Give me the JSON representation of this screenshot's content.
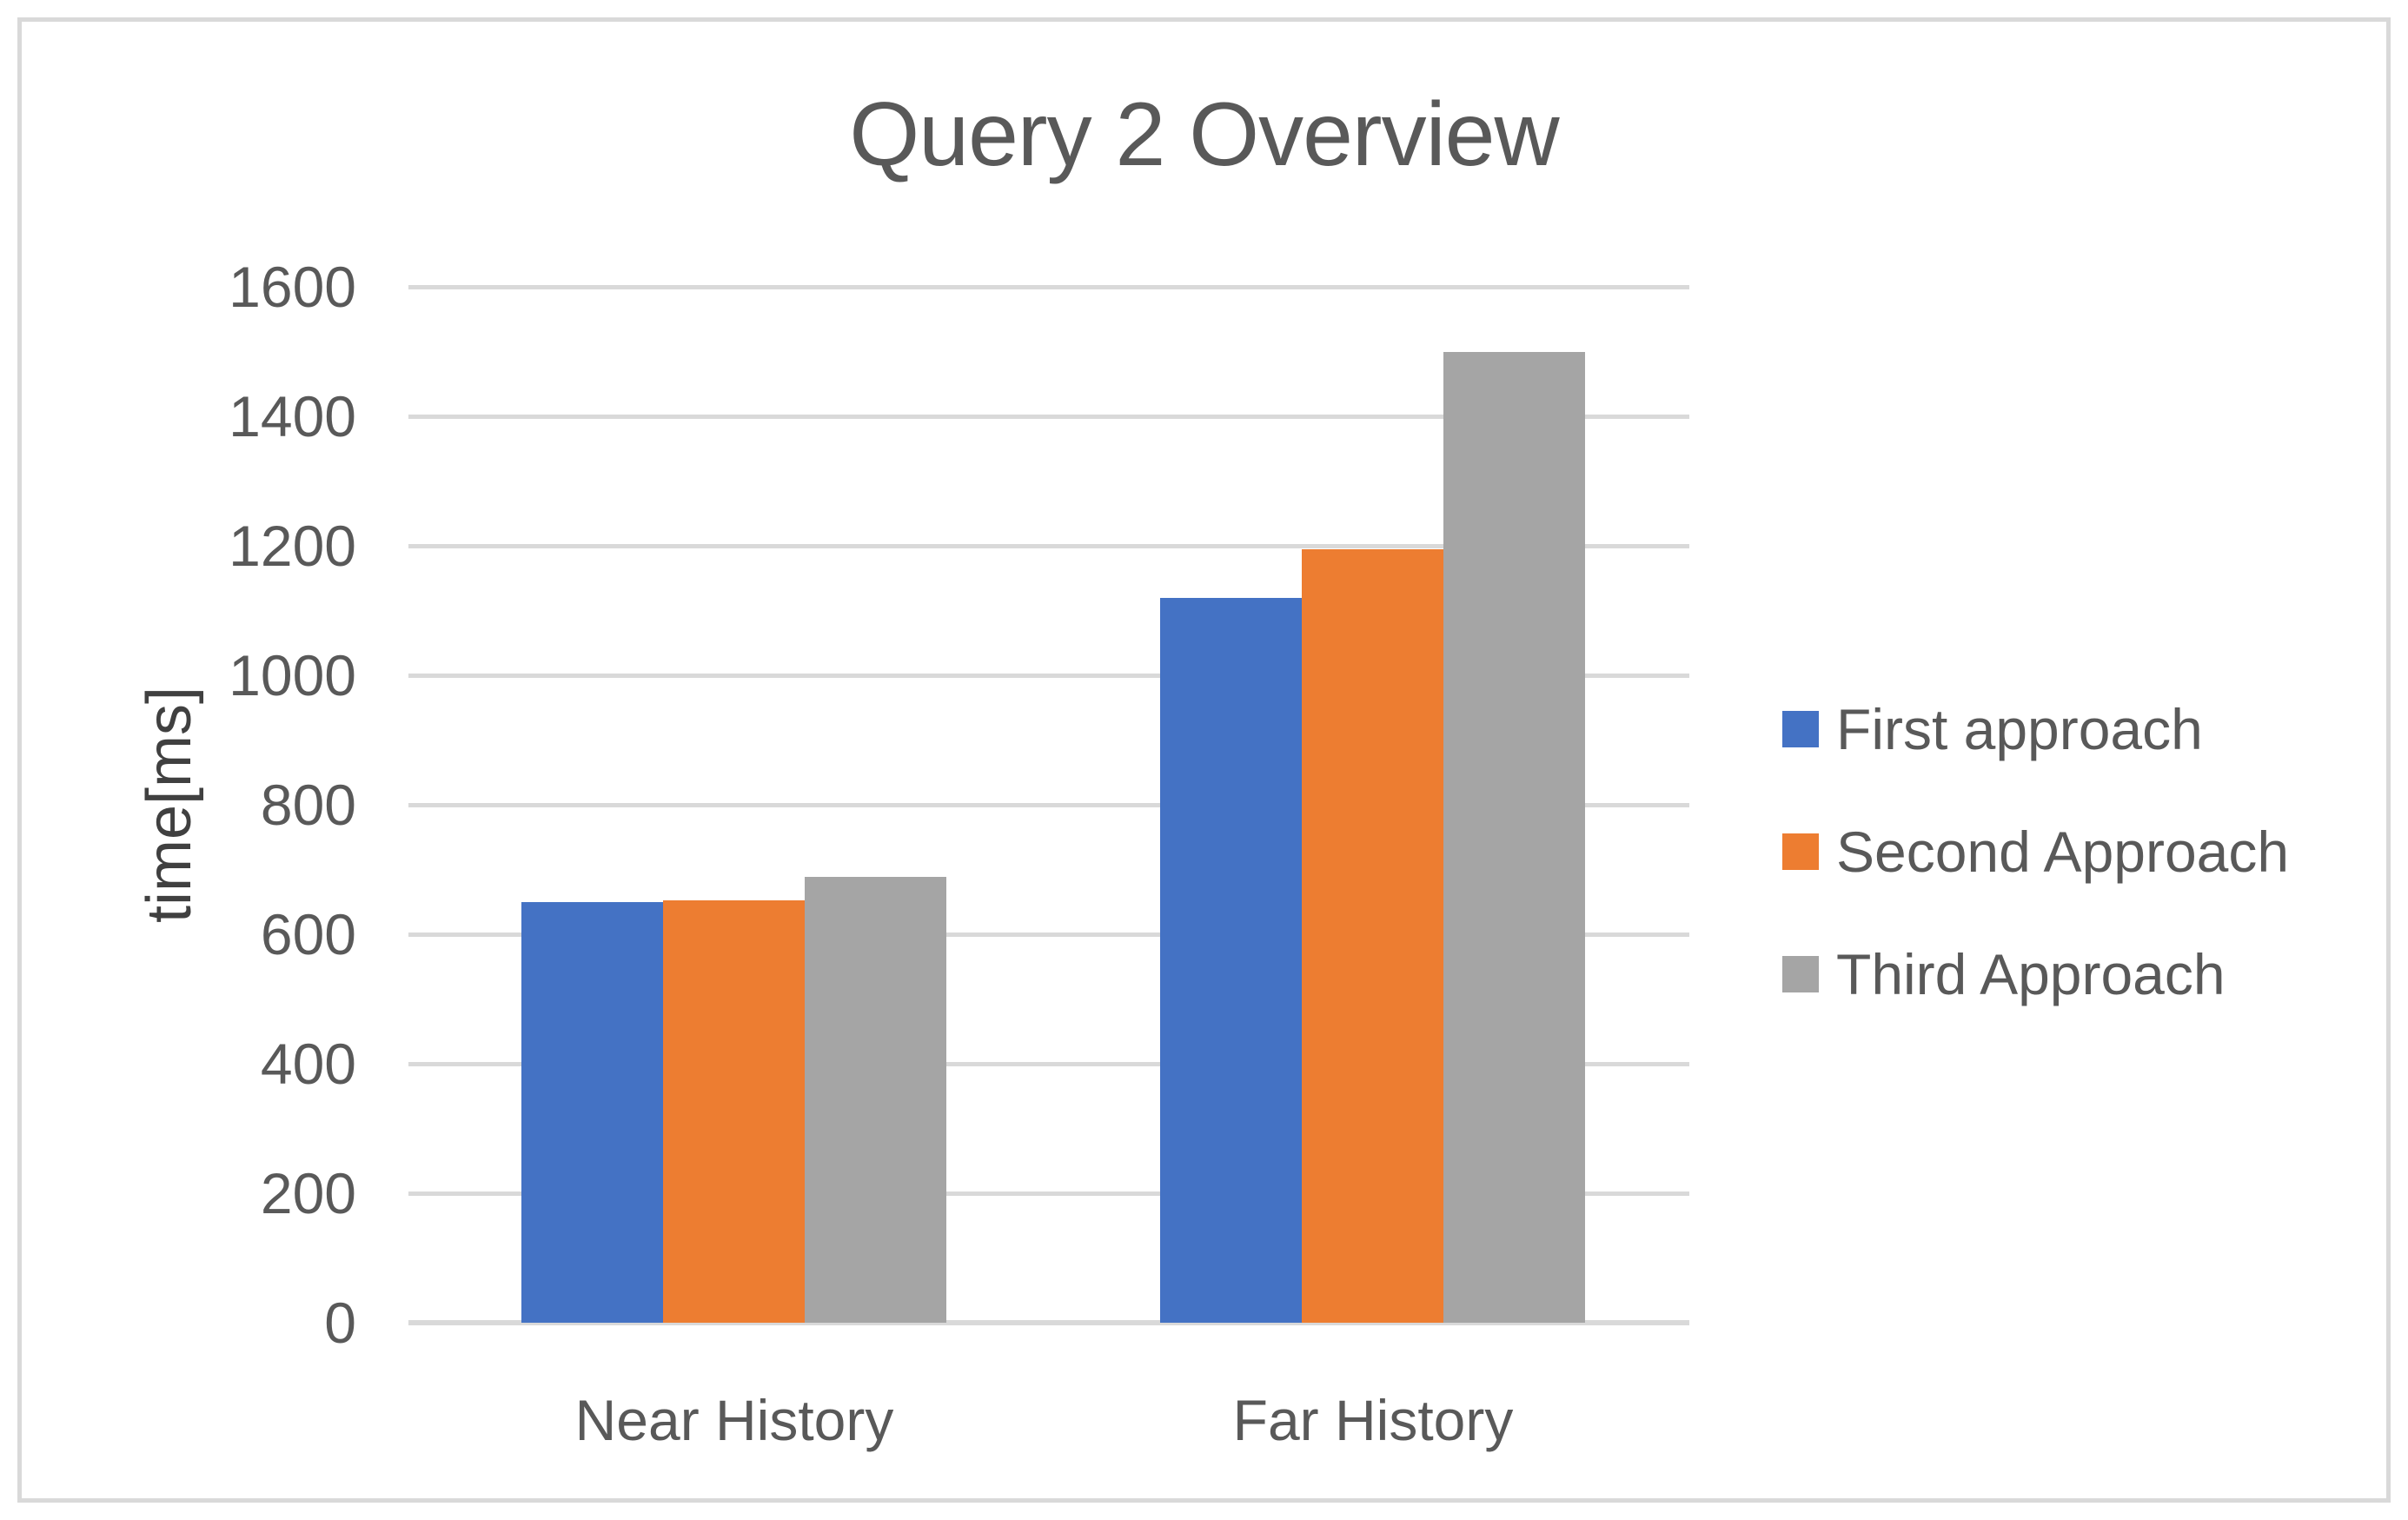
{
  "title": "Query 2 Overview",
  "chart_data": {
    "type": "bar",
    "title": "Query 2 Overview",
    "ylabel": "time[ms]",
    "xlabel": "",
    "categories": [
      "Near History",
      "Far History"
    ],
    "series": [
      {
        "name": "First approach",
        "color": "#4472C4",
        "values": [
          650,
          1120
        ]
      },
      {
        "name": "Second Approach",
        "color": "#ED7D31",
        "values": [
          652,
          1195
        ]
      },
      {
        "name": "Third Approach",
        "color": "#A5A5A5",
        "values": [
          688,
          1500
        ]
      }
    ],
    "ylim": [
      0,
      1600
    ],
    "yticks": [
      0,
      200,
      400,
      600,
      800,
      1000,
      1200,
      1400,
      1600
    ],
    "grid": true,
    "gridline_color": "#D9D9D9",
    "text_color": "#595959",
    "axis_title_color": "#404040",
    "legend_position": "right"
  }
}
